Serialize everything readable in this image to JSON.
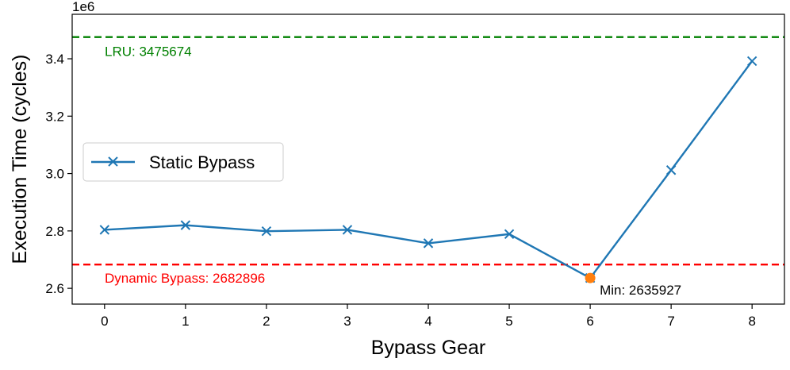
{
  "chart_data": {
    "type": "line",
    "x": [
      0,
      1,
      2,
      3,
      4,
      5,
      6,
      7,
      8
    ],
    "series": [
      {
        "name": "Static Bypass",
        "values": [
          2804000,
          2820000,
          2799000,
          2804000,
          2757000,
          2789000,
          2635927,
          3012000,
          3392000
        ],
        "color": "#1f77b4",
        "marker": "x"
      }
    ],
    "xlabel": "Bypass Gear",
    "ylabel": "Execution Time (cycles)",
    "xlim": [
      -0.4,
      8.4
    ],
    "ylim": [
      2545000,
      3555000
    ],
    "x_ticks": [
      "0",
      "1",
      "2",
      "3",
      "4",
      "5",
      "6",
      "7",
      "8"
    ],
    "y_ticks": [
      {
        "value": 2600000,
        "label": "2.6"
      },
      {
        "value": 2800000,
        "label": "2.8"
      },
      {
        "value": 3000000,
        "label": "3.0"
      },
      {
        "value": 3200000,
        "label": "3.2"
      },
      {
        "value": 3400000,
        "label": "3.4"
      }
    ],
    "y_offset_label": "1e6",
    "reference_lines": [
      {
        "value": 3475674,
        "label": "LRU: 3475674",
        "color": "#008000",
        "style": "dashed"
      },
      {
        "value": 2682896,
        "label": "Dynamic Bypass: 2682896",
        "color": "#ff0000",
        "style": "dashed"
      }
    ],
    "min_point": {
      "x": 6,
      "value": 2635927,
      "label": "Min: 2635927",
      "color": "#ff7f0e"
    },
    "legend": {
      "placement": "center-left",
      "entries": [
        "Static Bypass"
      ]
    },
    "grid": false
  }
}
